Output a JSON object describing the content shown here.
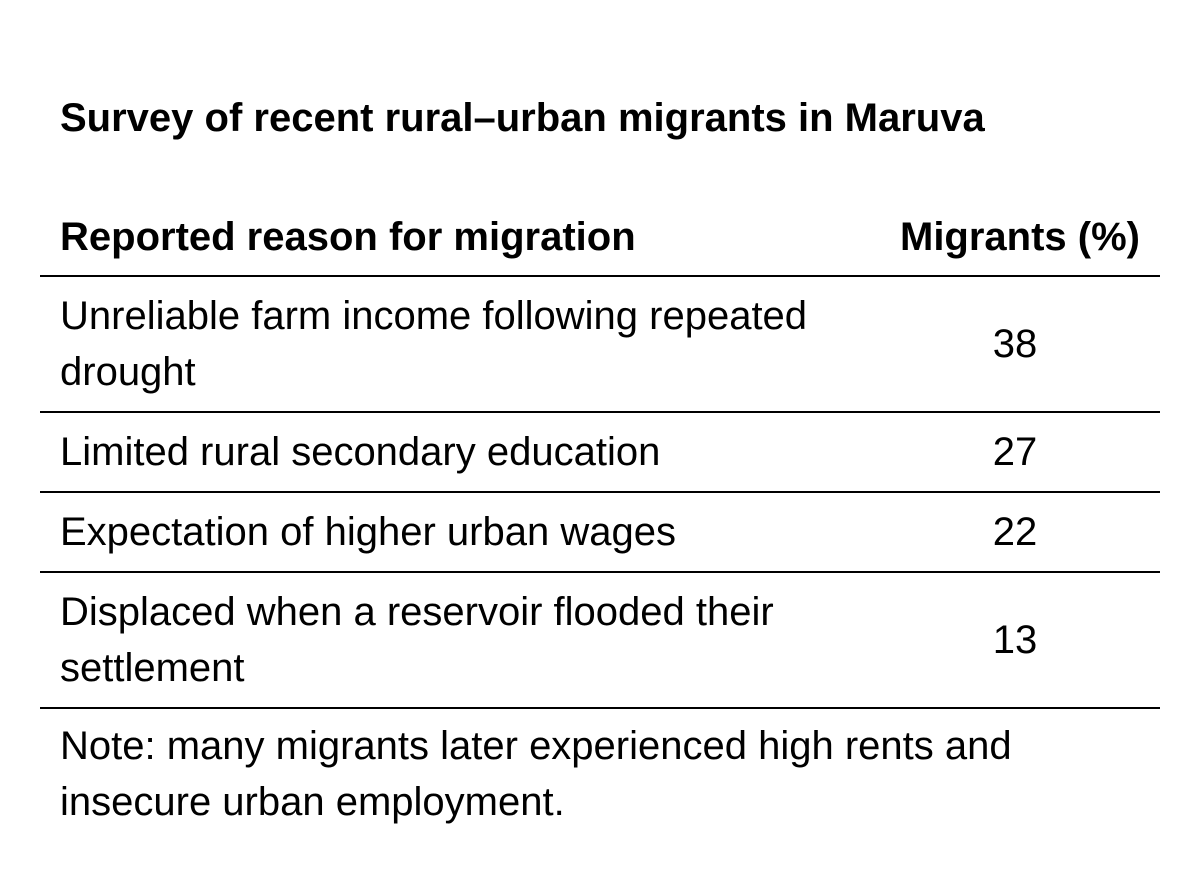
{
  "header": {
    "title": "Survey of recent rural–urban migrants in Maruva"
  },
  "table": {
    "columns": [
      "Reported reason for migration",
      "Migrants (%)"
    ],
    "rows": [
      [
        "Unreliable farm income following repeated drought",
        38
      ],
      [
        "Limited rural secondary education",
        27
      ],
      [
        "Expectation of higher urban wages",
        22
      ],
      [
        "Displaced when a reservoir flooded their settlement",
        13
      ]
    ]
  },
  "note": "Note: many migrants later experienced high rents and insecure urban employment."
}
